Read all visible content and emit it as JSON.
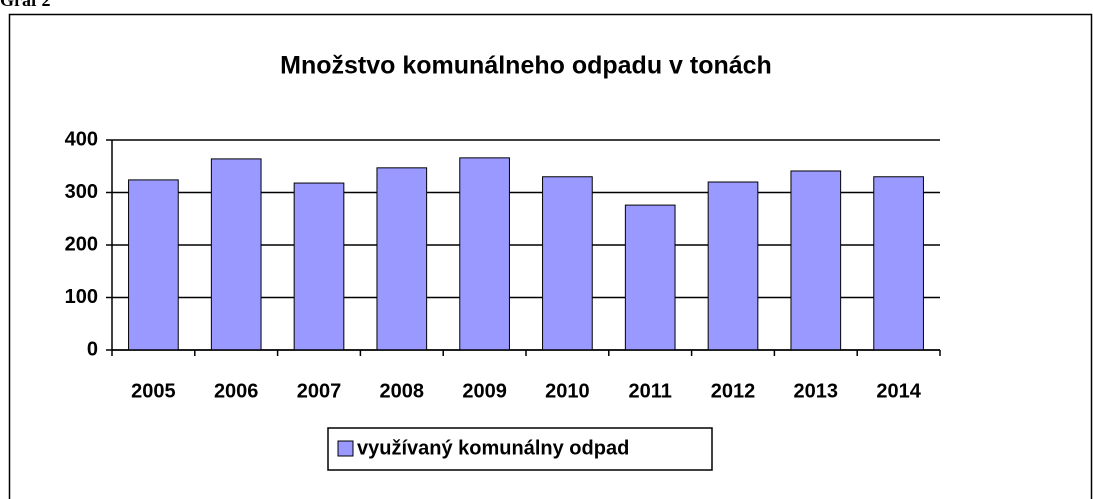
{
  "caption": "Graf 2",
  "chart_data": {
    "type": "bar",
    "title": "Množstvo komunálneho odpadu v tonách",
    "categories": [
      "2005",
      "2006",
      "2007",
      "2008",
      "2009",
      "2010",
      "2011",
      "2012",
      "2013",
      "2014"
    ],
    "series": [
      {
        "name": "využívaný komunálny odpad",
        "color": "#9999ff",
        "values": [
          324,
          364,
          318,
          347,
          366,
          330,
          276,
          320,
          341,
          330
        ]
      }
    ],
    "ylim": [
      0,
      400
    ],
    "yticks": [
      0,
      100,
      200,
      300,
      400
    ],
    "grid": true,
    "legend": "bottom"
  }
}
